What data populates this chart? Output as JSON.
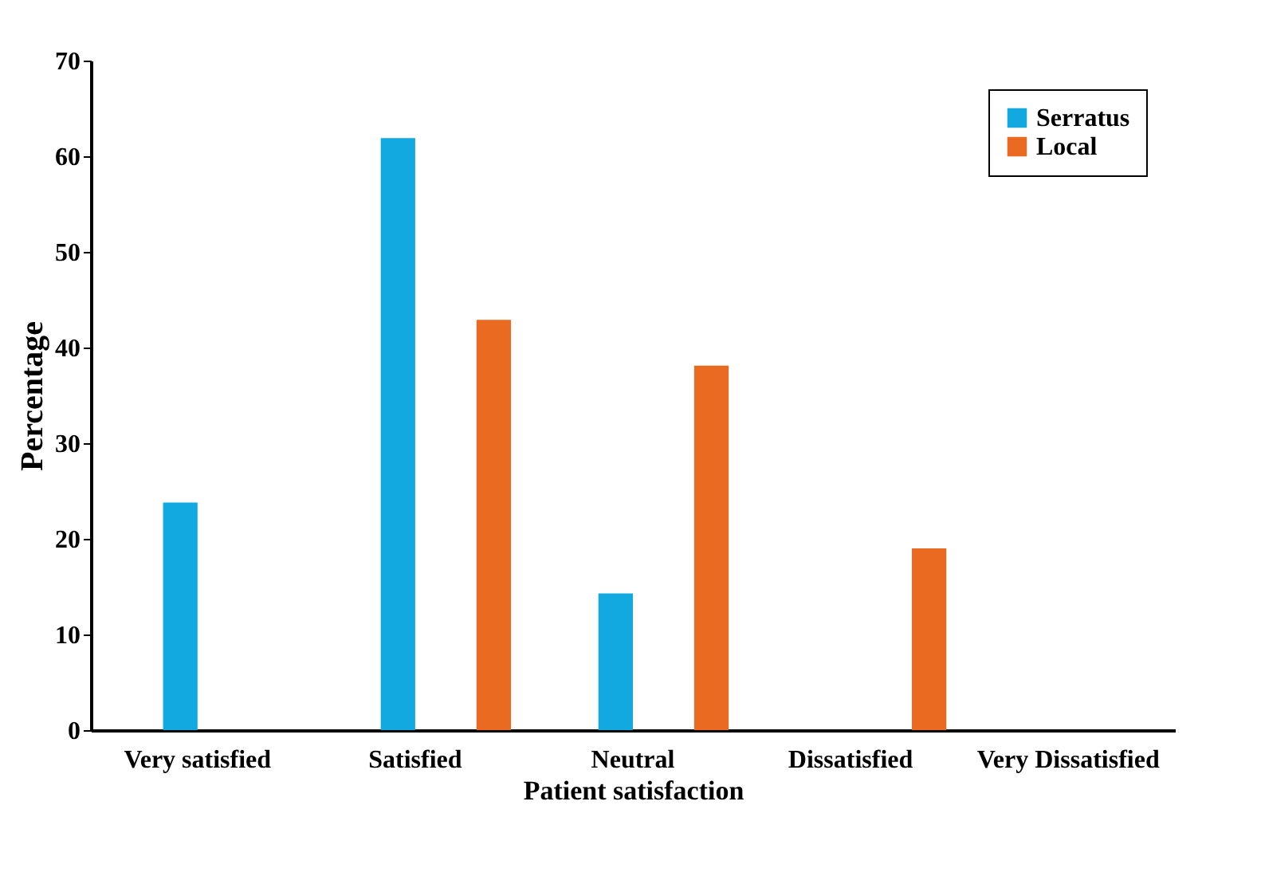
{
  "chart_data": {
    "type": "bar",
    "xlabel": "Patient satisfaction",
    "ylabel": "Percentage",
    "categories": [
      "Very satisfied",
      "Satisfied",
      "Neutral",
      "Dissatisfied",
      "Very Dissatisfied"
    ],
    "series": [
      {
        "name": "Serratus",
        "color": "#12a9e0",
        "values": [
          23.8,
          61.9,
          14.3,
          0,
          0
        ]
      },
      {
        "name": "Local",
        "color": "#ea6a22",
        "values": [
          0,
          42.9,
          38.1,
          19.0,
          0
        ]
      }
    ],
    "ylim": [
      0,
      70
    ],
    "yticks": [
      0,
      10,
      20,
      30,
      40,
      50,
      60,
      70
    ],
    "grid": false,
    "legend": "top right"
  }
}
